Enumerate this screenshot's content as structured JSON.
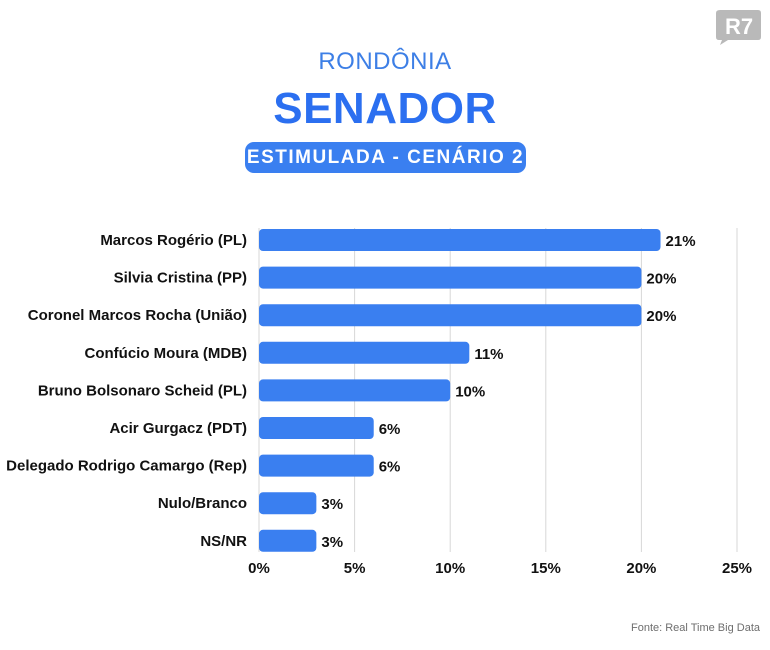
{
  "header": {
    "state": "RONDÔNIA",
    "office": "SENADOR",
    "scenario": "ESTIMULADA - CENÁRIO 2"
  },
  "logo": {
    "text": "R7",
    "color": "#b9b9b9"
  },
  "footer": {
    "source": "Fonte: Real Time Big Data"
  },
  "colors": {
    "bar": "#3a7ff0",
    "grid": "#d7d7d7",
    "text": "#111111"
  },
  "chart_data": {
    "type": "bar",
    "orientation": "horizontal",
    "categories": [
      "Marcos Rogério (PL)",
      "Silvia Cristina (PP)",
      "Coronel Marcos Rocha (União)",
      "Confúcio Moura (MDB)",
      "Bruno Bolsonaro Scheid (PL)",
      "Acir Gurgacz (PDT)",
      "Delegado Rodrigo Camargo (Rep)",
      "Nulo/Branco",
      "NS/NR"
    ],
    "values": [
      21,
      20,
      20,
      11,
      10,
      6,
      6,
      3,
      3
    ],
    "value_labels": [
      "21%",
      "20%",
      "20%",
      "11%",
      "10%",
      "6%",
      "6%",
      "3%",
      "3%"
    ],
    "xlim": [
      0,
      25
    ],
    "xticks": [
      0,
      5,
      10,
      15,
      20,
      25
    ],
    "xtick_labels": [
      "0%",
      "5%",
      "10%",
      "15%",
      "20%",
      "25%"
    ],
    "grid": "vertical"
  }
}
